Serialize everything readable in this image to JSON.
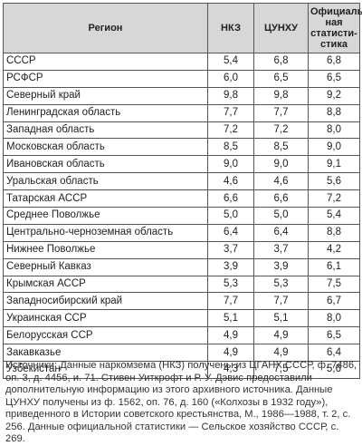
{
  "headers": {
    "region": "Регион",
    "nkz": "НКЗ",
    "tsunhu": "ЦУНХУ",
    "official_line1": "Официаль-",
    "official_line2": "ная статисти-",
    "official_line3": "стика"
  },
  "rows": [
    {
      "region": "СССР",
      "nkz": "5,4",
      "tsunhu": "6,8",
      "official": "6,8"
    },
    {
      "region": "РСФСР",
      "nkz": "6,0",
      "tsunhu": "6,5",
      "official": "6,5"
    },
    {
      "region": "Северный край",
      "nkz": "9,8",
      "tsunhu": "9,8",
      "official": "9,2"
    },
    {
      "region": "Ленинградская область",
      "nkz": "7,7",
      "tsunhu": "7,7",
      "official": "8,8"
    },
    {
      "region": "Западная область",
      "nkz": "7,2",
      "tsunhu": "7,2",
      "official": "8,0"
    },
    {
      "region": "Московская область",
      "nkz": "8,5",
      "tsunhu": "8,5",
      "official": "9,0"
    },
    {
      "region": "Ивановская область",
      "nkz": "9,0",
      "tsunhu": "9,0",
      "official": "9,1"
    },
    {
      "region": "Уральская область",
      "nkz": "4,6",
      "tsunhu": "4,6",
      "official": "5,6"
    },
    {
      "region": "Татарская АССР",
      "nkz": "6,6",
      "tsunhu": "6,6",
      "official": "7,2"
    },
    {
      "region": "Среднее Поволжье",
      "nkz": "5,0",
      "tsunhu": "5,0",
      "official": "5,4"
    },
    {
      "region": "Центрально-черноземная область",
      "nkz": "6,4",
      "tsunhu": "6,4",
      "official": "8,8"
    },
    {
      "region": "Нижнее Поволжье",
      "nkz": "3,7",
      "tsunhu": "3,7",
      "official": "4,2"
    },
    {
      "region": "Северный Кавказ",
      "nkz": "3,9",
      "tsunhu": "3,9",
      "official": "6,1"
    },
    {
      "region": "Крымская АССР",
      "nkz": "5,3",
      "tsunhu": "5,3",
      "official": "7,5"
    },
    {
      "region": "Западносибирский край",
      "nkz": "7,7",
      "tsunhu": "7,7",
      "official": "6,7"
    },
    {
      "region": "Украинская ССР",
      "nkz": "5,1",
      "tsunhu": "5,1",
      "official": "8,0"
    },
    {
      "region": "Белорусская ССР",
      "nkz": "4,9",
      "tsunhu": "4,9",
      "official": "6,5"
    },
    {
      "region": "Закавказье",
      "nkz": "4,9",
      "tsunhu": "4,9",
      "official": "6,4"
    },
    {
      "region": "Узбекистан",
      "nkz": "4,3",
      "tsunhu": "7,5",
      "official": "5,6"
    }
  ],
  "sources_note": "Источники: Данные наркомзема (НКЗ) получены из ЦГАНХ СССР, ф. 7486, оп. 3, д. 4456, и. 71. Стивен Уиткрофт и Р. У. Дэвис предоставили дополнительную информацию из этого архивного источника. Данные ЦУНХУ получены из ф. 1562, оп. 76, д. 160 («Колхозы в 1932 году»), приведенного в Истории советского крестьянства, М., 1986—1988, т. 2, с. 256. Данные официальной статистики — Сельское хозяйство СССР, с. 269."
}
